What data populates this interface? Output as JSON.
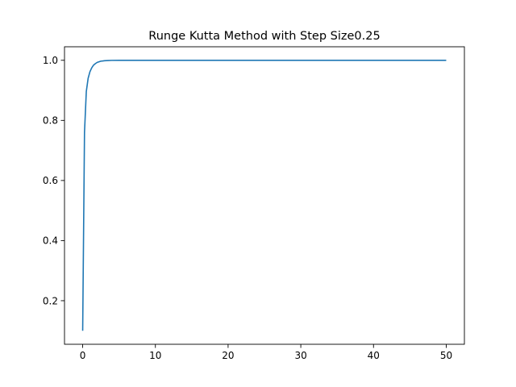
{
  "chart_data": {
    "type": "line",
    "title": "Runge Kutta Method with Step Size0.25",
    "xlabel": "",
    "ylabel": "",
    "xlim": [
      -2.5,
      52.5
    ],
    "ylim": [
      0.055,
      1.045
    ],
    "xticks": [
      0,
      10,
      20,
      30,
      40,
      50
    ],
    "yticks": [
      0.2,
      0.4,
      0.6,
      0.8,
      1.0
    ],
    "xtick_labels": [
      "0",
      "10",
      "20",
      "30",
      "40",
      "50"
    ],
    "ytick_labels": [
      "0.2",
      "0.4",
      "0.6",
      "0.8",
      "1.0"
    ],
    "grid": false,
    "legend": "none",
    "series": [
      {
        "color": "#1f77b4",
        "x": [
          0,
          0.25,
          0.5,
          0.75,
          1.0,
          1.25,
          1.5,
          1.75,
          2.0,
          2.5,
          3.0,
          3.5,
          4.0,
          5.0,
          6.0,
          8.0,
          10,
          15,
          20,
          25,
          30,
          35,
          40,
          45,
          50
        ],
        "y": [
          0.1,
          0.76,
          0.896,
          0.94,
          0.962,
          0.975,
          0.984,
          0.989,
          0.993,
          0.997,
          0.9985,
          0.9993,
          0.9997,
          0.9999,
          1.0,
          1.0,
          1.0,
          1.0,
          1.0,
          1.0,
          1.0,
          1.0,
          1.0,
          1.0,
          1.0
        ]
      }
    ]
  }
}
